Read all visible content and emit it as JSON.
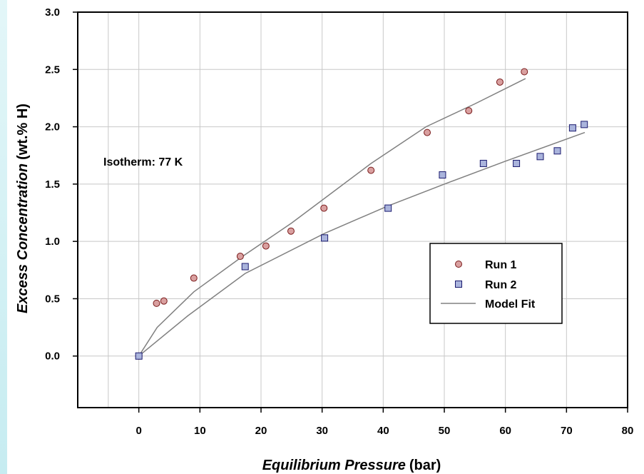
{
  "chart_data": {
    "type": "scatter",
    "xlabel_main": "Equilibrium Pressure",
    "xlabel_unit": "(bar)",
    "ylabel_main": "Excess Concentration",
    "ylabel_unit": "(wt.% H)",
    "xlim": [
      -10,
      80
    ],
    "ylim": [
      -0.45,
      3.0
    ],
    "xticks": [
      0,
      10,
      20,
      30,
      40,
      50,
      60,
      70,
      80
    ],
    "yticks": [
      0.0,
      0.5,
      1.0,
      1.5,
      2.0,
      2.5,
      3.0
    ],
    "xtick_labels": [
      "0",
      "10",
      "20",
      "30",
      "40",
      "50",
      "60",
      "70",
      "80"
    ],
    "ytick_labels": [
      "0.0",
      "0.5",
      "1.0",
      "1.5",
      "2.0",
      "2.5",
      "3.0"
    ],
    "grid": true,
    "annotation": "Isotherm:  77 K",
    "legend_placement": "lower-right",
    "series": [
      {
        "name": "Run 1",
        "marker": "circle",
        "color": "#d9a0a0",
        "edge": "#7a1a1a",
        "x": [
          0,
          2.9,
          4.1,
          9.0,
          16.6,
          20.8,
          24.9,
          30.3,
          38.0,
          47.2,
          54.0,
          59.1,
          63.1
        ],
        "y": [
          0.0,
          0.46,
          0.48,
          0.68,
          0.87,
          0.96,
          1.09,
          1.29,
          1.62,
          1.95,
          2.14,
          2.39,
          2.48
        ]
      },
      {
        "name": "Run 2",
        "marker": "square",
        "color": "#aab4dc",
        "edge": "#1a1a6e",
        "x": [
          0,
          17.4,
          30.4,
          40.8,
          49.7,
          56.4,
          61.8,
          65.7,
          68.5,
          71.0,
          72.9
        ],
        "y": [
          0.0,
          0.78,
          1.03,
          1.29,
          1.58,
          1.68,
          1.68,
          1.74,
          1.79,
          1.99,
          2.02
        ]
      },
      {
        "name": "Model Fit",
        "marker": "line",
        "color": "#808080",
        "lines": [
          {
            "x": [
              0,
              3,
              9,
              17,
              25,
              30,
              38,
              47,
              55,
              63.3
            ],
            "y": [
              0.0,
              0.25,
              0.56,
              0.87,
              1.16,
              1.36,
              1.68,
              2.0,
              2.2,
              2.42
            ]
          },
          {
            "x": [
              0,
              8,
              17.4,
              30.4,
              40.8,
              50,
              60,
              73
            ],
            "y": [
              0.0,
              0.35,
              0.72,
              1.07,
              1.31,
              1.5,
              1.7,
              1.95
            ]
          }
        ]
      }
    ]
  }
}
